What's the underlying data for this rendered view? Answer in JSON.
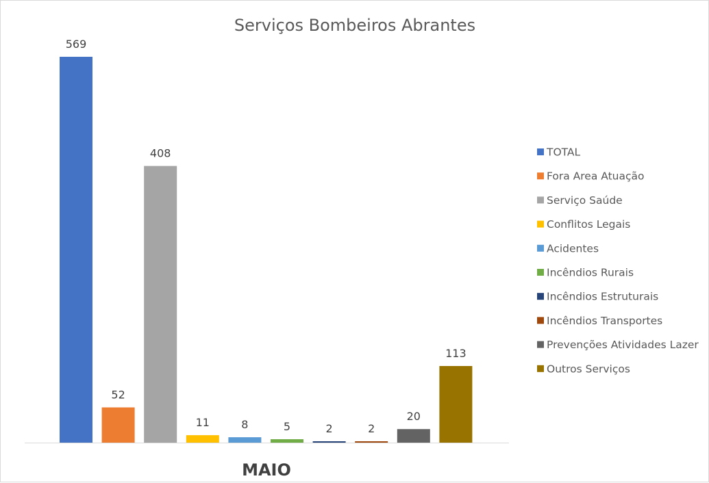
{
  "chart_data": {
    "type": "bar",
    "title": "Serviços Bombeiros Abrantes",
    "categories": [
      "MAIO"
    ],
    "series": [
      {
        "name": "TOTAL",
        "values": [
          569
        ],
        "color": "#4472C4"
      },
      {
        "name": "Fora Area Atuação",
        "values": [
          52
        ],
        "color": "#ED7D31"
      },
      {
        "name": "Serviço Saúde",
        "values": [
          408
        ],
        "color": "#A5A5A5"
      },
      {
        "name": "Conflitos Legais",
        "values": [
          11
        ],
        "color": "#FFC000"
      },
      {
        "name": "Acidentes",
        "values": [
          8
        ],
        "color": "#5B9BD5"
      },
      {
        "name": "Incêndios Rurais",
        "values": [
          5
        ],
        "color": "#70AD47"
      },
      {
        "name": "Incêndios Estruturais",
        "values": [
          2
        ],
        "color": "#264478"
      },
      {
        "name": "Incêndios Transportes",
        "values": [
          2
        ],
        "color": "#9E480E"
      },
      {
        "name": "Prevenções Atividades Lazer",
        "values": [
          20
        ],
        "color": "#636363"
      },
      {
        "name": "Outros Serviços",
        "values": [
          113
        ],
        "color": "#997300"
      }
    ],
    "xlabel": "",
    "ylabel": "",
    "ylim": [
      0,
      600
    ],
    "grid": false,
    "legend": "right"
  }
}
